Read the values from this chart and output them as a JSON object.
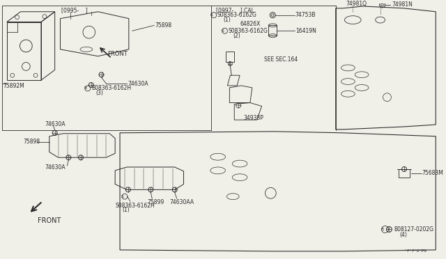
{
  "bg_color": "#f0efe8",
  "line_color": "#2a2a2a",
  "font_size": 5.5,
  "line_width": 0.7,
  "labels": {
    "bracket1": "[0995-    ]",
    "bracket2": "[0997-    ] CAL",
    "p75898": "75898",
    "p75892M": "75892M",
    "p74630A": "74630A",
    "pB08363_6162H": "B08363-6162H",
    "p3": "(3)",
    "pS08363_6162G_1": "S08363-6162G",
    "p1": "(1)",
    "p64826X": "64826X",
    "pS08363_6162G_2": "S08363-6162G",
    "p2": "(2)",
    "p34938P": "34938P",
    "p74753B": "74753B",
    "p16419N": "16419N",
    "pSECSEC": "SEE SEC.164",
    "p74981Q": "74981Q",
    "p74981N": "74981N",
    "p75898b": "75898",
    "p74630Ab": "74630A",
    "p74630Ac": "74630A",
    "pS08363b": "S08363-6162H",
    "p1b": "(1)",
    "p75899": "75899",
    "p74630AA": "74630AA",
    "p75683M": "75683M",
    "pB08127": "B08127-0202G",
    "p4": "(4)",
    "pFRONT": "FRONT",
    "pFRONT2": "FRONT",
    "watermark": "^7*7*0*P9"
  }
}
